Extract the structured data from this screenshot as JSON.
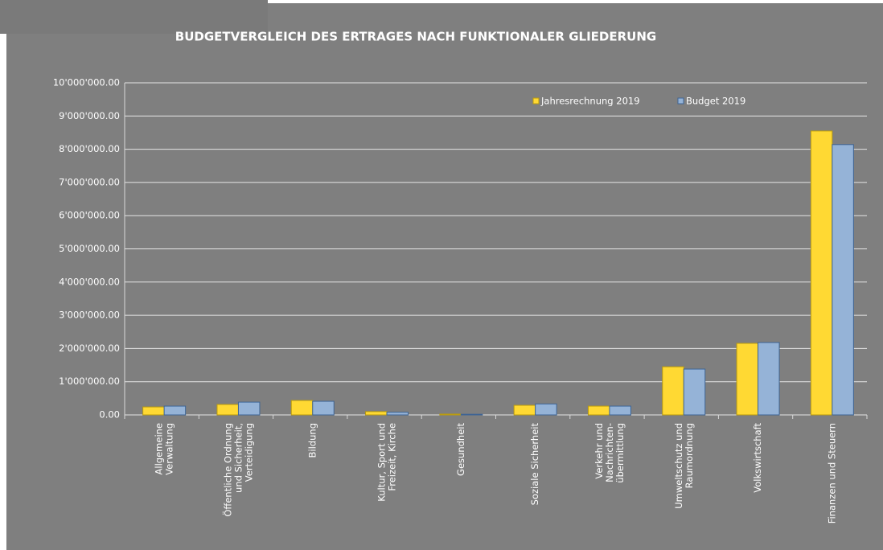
{
  "chart_data": {
    "type": "bar",
    "title": "BUDGETVERGLEICH DES ERTRAGES NACH FUNKTIONALER GLIEDERUNG",
    "categories": [
      "Allgemeine\nVerwaltung",
      "Öffentliche Ordnung\nund Sicherheit,\nVerteidigung",
      "Bildung",
      "Kultur, Sport und\nFreizeit, Kirche",
      "Gesundheit",
      "Soziale Sicherheit",
      "Verkehr und\nNachrichten-\nübermittlung",
      "Umweltschutz und\nRaumordnung",
      "Volkswirtschaft",
      "Finanzen und Steuern"
    ],
    "series": [
      {
        "name": "Jahresrechnung 2019",
        "color": "#ffd933",
        "values": [
          240000,
          315000,
          435000,
          100000,
          25000,
          290000,
          265000,
          1450000,
          2155000,
          8550000
        ]
      },
      {
        "name": "Budget 2019",
        "color": "#95b3d7",
        "values": [
          265000,
          385000,
          410000,
          80000,
          20000,
          330000,
          265000,
          1380000,
          2180000,
          8140000
        ]
      }
    ],
    "ylim": [
      0,
      10000000
    ],
    "yticks": [
      {
        "value": 0,
        "label": "0.00"
      },
      {
        "value": 1000000,
        "label": "1'000'000.00"
      },
      {
        "value": 2000000,
        "label": "2'000'000.00"
      },
      {
        "value": 3000000,
        "label": "3'000'000.00"
      },
      {
        "value": 4000000,
        "label": "4'000'000.00"
      },
      {
        "value": 5000000,
        "label": "5'000'000.00"
      },
      {
        "value": 6000000,
        "label": "6'000'000.00"
      },
      {
        "value": 7000000,
        "label": "7'000'000.00"
      },
      {
        "value": 8000000,
        "label": "8'000'000.00"
      },
      {
        "value": 9000000,
        "label": "9'000'000.00"
      },
      {
        "value": 10000000,
        "label": "10'000'000.00"
      }
    ],
    "grid": true,
    "legend": "top-right"
  }
}
